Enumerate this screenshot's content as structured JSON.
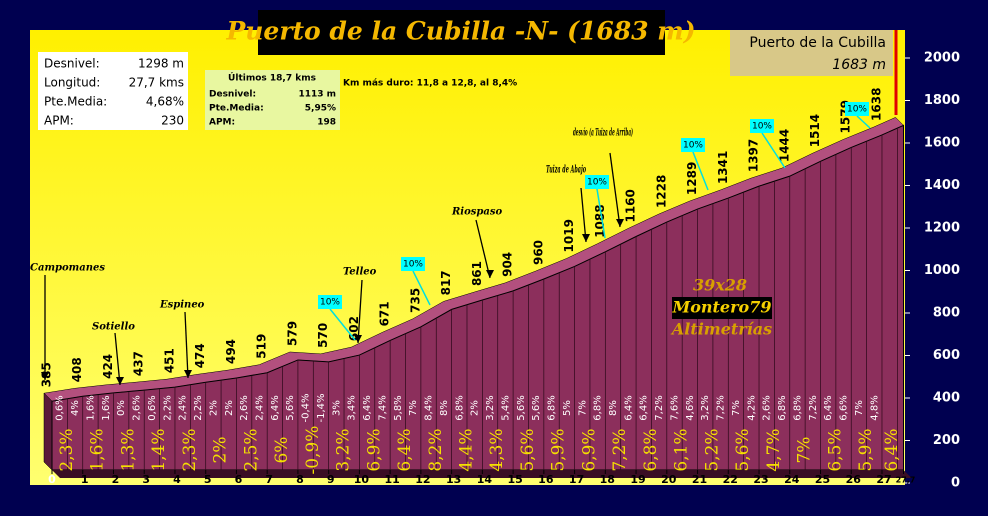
{
  "chart_data": {
    "type": "area",
    "title": "Puerto de la Cubilla -N- (1683 m)",
    "x": [
      0,
      1,
      2,
      3,
      4,
      5,
      6,
      7,
      8,
      9,
      10,
      11,
      12,
      13,
      14,
      15,
      16,
      17,
      18,
      19,
      20,
      21,
      22,
      23,
      24,
      25,
      26,
      27,
      27.7
    ],
    "values": [
      385,
      408,
      424,
      437,
      451,
      474,
      494,
      519,
      579,
      570,
      602,
      671,
      735,
      817,
      861,
      904,
      960,
      1019,
      1088,
      1160,
      1228,
      1289,
      1341,
      1397,
      1444,
      1514,
      1579,
      1638,
      1683
    ],
    "color": "#8c2f5c",
    "xlim": [
      0,
      27.7
    ],
    "xticks": [
      0,
      1,
      2,
      3,
      4,
      5,
      6,
      7,
      8,
      9,
      10,
      11,
      12,
      13,
      14,
      15,
      16,
      17,
      18,
      19,
      20,
      21,
      22,
      23,
      24,
      25,
      26,
      27,
      {
        "value": 27.7,
        "label": "27,7"
      }
    ],
    "ylim": [
      0,
      2000
    ],
    "yticks": [
      0,
      200,
      400,
      600,
      800,
      1000,
      1200,
      1400,
      1600,
      1800,
      2000
    ],
    "km_grades": [
      "2,3%",
      "1,6%",
      "1,3%",
      "1,4%",
      "2,3%",
      "2%",
      "2,5%",
      "6%",
      "-0,9%",
      "3,2%",
      "6,9%",
      "6,4%",
      "8,2%",
      "4,4%",
      "4,3%",
      "5,6%",
      "5,9%",
      "6,9%",
      "7,2%",
      "6,8%",
      "6,1%",
      "5,2%",
      "5,6%",
      "4,7%",
      "7%",
      "6,5%",
      "5,9%",
      "6,4%"
    ],
    "half_km_grades": [
      "0,6%",
      "4%",
      "1,6%",
      "1,6%",
      "0%",
      "2,6%",
      "0,6%",
      "2,2%",
      "2,4%",
      "2,2%",
      "2%",
      "2%",
      "2,6%",
      "2,4%",
      "6,4%",
      "5,6%",
      "-0,4%",
      "-1,4%",
      "3%",
      "3,4%",
      "6,4%",
      "7,4%",
      "5,8%",
      "7%",
      "8,4%",
      "8%",
      "6,8%",
      "2%",
      "3,2%",
      "5,4%",
      "5,6%",
      "5,6%",
      "6,8%",
      "5%",
      "7%",
      "6,8%",
      "8%",
      "6,4%",
      "6,4%",
      "7,2%",
      "7,6%",
      "4,6%",
      "3,2%",
      "7,2%",
      "7%",
      "4,2%",
      "2,6%",
      "6,8%",
      "6,8%",
      "7,2%",
      "6,4%",
      "6,6%",
      "7%",
      "4,8%"
    ],
    "steep_marks": [
      "10%",
      "10%",
      "10%",
      "10%",
      "10%",
      "10%"
    ],
    "annotations": [
      "Campomanes",
      "Sotiello",
      "Espineo",
      "Telleo",
      "Riospaso",
      "Tuiza de Abajo",
      "desvío (a Tuiza de Arriba)"
    ],
    "summary": [
      [
        "Desnivel:",
        "1298 m"
      ],
      [
        "Longitud:",
        "27,7 kms"
      ],
      [
        "Pte.Media:",
        "4,68%"
      ],
      [
        "APM:",
        "230"
      ]
    ],
    "last_section": {
      "title": "Últimos 18,7 kms",
      "rows": [
        [
          "Desnivel:",
          "1113 m"
        ],
        [
          "Pte.Media:",
          "5,95%"
        ],
        [
          "APM:",
          "198"
        ]
      ]
    },
    "hardest_km": "Km más duro: 11,8 a 12,8, al 8,4%",
    "summit": {
      "name": "Puerto de la Cubilla",
      "altitude": "1683 m"
    },
    "credits": [
      "39x28",
      "Montero79",
      "Altimetrías"
    ]
  }
}
